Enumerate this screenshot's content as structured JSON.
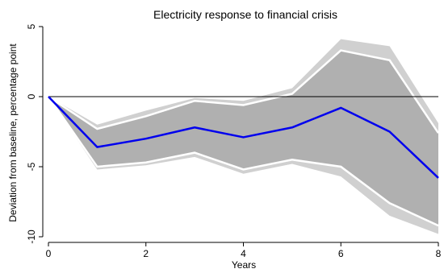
{
  "chart_data": {
    "type": "line",
    "title": "Electricity response to financial crisis",
    "xlabel": "Years",
    "ylabel": "Deviation from baseline, percentage point",
    "xlim": [
      0,
      8
    ],
    "ylim": [
      -10,
      5
    ],
    "xticks": [
      0,
      2,
      4,
      6,
      8
    ],
    "yticks": [
      5,
      0,
      -5,
      -10
    ],
    "x": [
      0,
      1,
      2,
      3,
      4,
      5,
      6,
      7,
      8
    ],
    "baseline": 0,
    "series": [
      {
        "role": "outer_band_upper",
        "values": [
          0,
          -2.0,
          -1.0,
          -0.1,
          -0.3,
          0.6,
          4.1,
          3.6,
          -1.9
        ]
      },
      {
        "role": "outer_band_lower",
        "values": [
          0,
          -5.2,
          -4.9,
          -4.3,
          -5.5,
          -4.8,
          -5.7,
          -8.5,
          -9.8
        ]
      },
      {
        "role": "inner_band_upper",
        "values": [
          0,
          -2.3,
          -1.4,
          -0.3,
          -0.6,
          0.2,
          3.3,
          2.6,
          -2.6
        ]
      },
      {
        "role": "inner_band_lower",
        "values": [
          0,
          -5.0,
          -4.7,
          -4.0,
          -5.2,
          -4.5,
          -5.0,
          -7.6,
          -9.2
        ]
      },
      {
        "role": "point_estimate",
        "values": [
          0,
          -3.6,
          -3.0,
          -2.2,
          -2.9,
          -2.2,
          -0.8,
          -2.5,
          -5.8
        ]
      }
    ],
    "colors": {
      "outer_band": "#d0d0d0",
      "inner_band": "#b0b0b0",
      "band_edge": "#ffffff",
      "estimate": "#0000ee",
      "baseline": "#000000"
    },
    "grid": false,
    "legend": "none"
  }
}
